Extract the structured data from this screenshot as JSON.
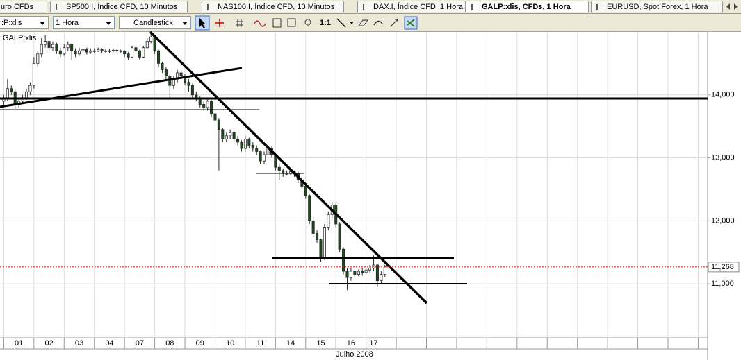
{
  "tabs": [
    "uro CFDs",
    "SP500.I, Índice CFD, 10 Minutos",
    "NAS100.I, Índice CFD, 10 Minutos",
    "DAX.I, Índice CFD, 1 Hora",
    "GALP:xlis, CFDs, 1 Hora",
    "EURUSD, Spot Forex, 1 Hora"
  ],
  "toolbar": {
    "symbol": ":P:xlis",
    "interval": "1 Hora",
    "chart_style": "Candlestick",
    "zoom_label": "1:1"
  },
  "chart_data": {
    "type": "candlestick",
    "symbol_label": "GALP:xlis",
    "x_axis_title": "Julho 2008",
    "x": [
      0,
      1,
      2,
      3,
      4,
      5,
      6,
      7,
      8,
      9,
      10,
      11,
      12,
      13,
      14,
      15,
      16,
      17,
      18,
      19,
      20,
      21,
      22,
      23,
      24,
      25,
      26,
      27,
      28,
      29,
      30,
      31,
      32,
      33,
      34,
      35,
      36,
      37,
      38,
      39,
      40,
      41,
      42,
      43,
      44,
      45,
      46,
      47,
      48,
      49,
      50,
      51,
      52,
      53,
      54,
      55,
      56,
      57,
      58,
      59,
      60,
      61,
      62,
      63,
      64,
      65,
      66,
      67,
      68,
      69,
      70,
      71,
      72,
      73,
      74,
      75,
      76,
      77,
      78,
      79,
      80,
      81,
      82,
      83,
      84,
      85,
      86,
      87,
      88,
      89,
      90,
      91,
      92,
      93,
      94,
      95,
      96,
      97,
      98,
      99,
      100,
      101
    ],
    "open": [
      13900,
      13950,
      14100,
      14050,
      13850,
      13900,
      13950,
      14050,
      14150,
      14500,
      14650,
      14800,
      14850,
      14750,
      14800,
      14700,
      14650,
      14750,
      14800,
      14700,
      14650,
      14700,
      14720,
      14680,
      14700,
      14700,
      14720,
      14700,
      14690,
      14700,
      14710,
      14700,
      14690,
      14650,
      14600,
      14750,
      14700,
      14600,
      14750,
      14850,
      14920,
      14700,
      14500,
      14400,
      14300,
      14150,
      14250,
      14350,
      14300,
      14200,
      14150,
      14000,
      13950,
      13850,
      13800,
      13900,
      13700,
      13600,
      13450,
      13300,
      13350,
      13400,
      13300,
      13250,
      13150,
      13300,
      13200,
      13150,
      13100,
      12950,
      13050,
      13150,
      13050,
      12850,
      12800,
      12750,
      12750,
      12780,
      12750,
      12650,
      12550,
      12400,
      12000,
      11800,
      11700,
      11400,
      11900,
      12100,
      12250,
      11950,
      11550,
      11200,
      11100,
      11200,
      11150,
      11200,
      11180,
      11220,
      11250,
      11300,
      11050,
      11150
    ],
    "high": [
      14000,
      14250,
      14150,
      14080,
      13950,
      14000,
      14100,
      14200,
      14600,
      14700,
      14900,
      14950,
      14880,
      14850,
      14830,
      14750,
      14800,
      14850,
      14820,
      14740,
      14750,
      14760,
      14750,
      14740,
      14740,
      14750,
      14740,
      14730,
      14730,
      14740,
      14740,
      14720,
      14710,
      14680,
      14780,
      14790,
      14720,
      14780,
      14900,
      15000,
      14950,
      14720,
      14530,
      14450,
      14320,
      14300,
      14400,
      14380,
      14330,
      14250,
      14180,
      14050,
      13980,
      13900,
      13950,
      13920,
      13750,
      13630,
      13480,
      13400,
      13450,
      13420,
      13350,
      13280,
      13350,
      13320,
      13250,
      13200,
      13120,
      13100,
      13200,
      13180,
      13080,
      12900,
      12830,
      12800,
      12820,
      12800,
      12780,
      12700,
      12600,
      12420,
      12050,
      11850,
      11720,
      11950,
      12150,
      12300,
      12280,
      11980,
      11580,
      11250,
      11250,
      11220,
      11230,
      11250,
      11250,
      11300,
      11450,
      11320,
      11200,
      11300
    ],
    "low": [
      13800,
      13900,
      14000,
      13780,
      13800,
      13860,
      13920,
      14000,
      14100,
      14450,
      14600,
      14750,
      14700,
      14700,
      14650,
      14600,
      14620,
      14700,
      14550,
      14600,
      14620,
      14670,
      14640,
      14650,
      14660,
      14680,
      14670,
      14660,
      14660,
      14680,
      14670,
      14660,
      14600,
      14550,
      14580,
      14650,
      14560,
      14580,
      14720,
      14820,
      14650,
      14450,
      14350,
      14250,
      13950,
      14100,
      14200,
      14250,
      14150,
      14050,
      13950,
      13900,
      13800,
      13750,
      13750,
      13650,
      13300,
      12800,
      13250,
      13250,
      13300,
      13250,
      13200,
      13100,
      13100,
      13150,
      13100,
      13050,
      12900,
      12900,
      13000,
      13000,
      12800,
      12650,
      12700,
      12720,
      12720,
      12700,
      12600,
      12500,
      12350,
      11950,
      11750,
      11650,
      11350,
      11380,
      11850,
      12050,
      11900,
      11500,
      11150,
      10900,
      11050,
      11100,
      11120,
      11130,
      11150,
      11180,
      11200,
      10950,
      11000,
      11100
    ],
    "close": [
      13950,
      14100,
      14050,
      13850,
      13900,
      13950,
      14050,
      14150,
      14500,
      14650,
      14800,
      14850,
      14750,
      14800,
      14700,
      14650,
      14750,
      14800,
      14700,
      14650,
      14700,
      14720,
      14680,
      14700,
      14700,
      14720,
      14700,
      14690,
      14700,
      14710,
      14700,
      14690,
      14650,
      14600,
      14750,
      14700,
      14600,
      14750,
      14850,
      14920,
      14700,
      14500,
      14400,
      14300,
      14150,
      14250,
      14350,
      14300,
      14200,
      14150,
      14000,
      13950,
      13850,
      13800,
      13900,
      13700,
      13600,
      13450,
      13300,
      13350,
      13400,
      13300,
      13250,
      13150,
      13300,
      13200,
      13150,
      13100,
      12950,
      13050,
      13150,
      13050,
      12850,
      12800,
      12750,
      12750,
      12780,
      12750,
      12650,
      12550,
      12400,
      12000,
      11800,
      11700,
      11400,
      11900,
      12100,
      12250,
      11950,
      11550,
      11200,
      11100,
      11200,
      11150,
      11200,
      11180,
      11220,
      11250,
      11300,
      11050,
      11150,
      11268
    ],
    "up_color": "#ffffff",
    "down_color": "#1e4a1e",
    "wick_color": "#2a2a2a",
    "xlim": [
      -1,
      186.5
    ],
    "xticks": [
      {
        "value": 4,
        "label": "01"
      },
      {
        "value": 12,
        "label": "02"
      },
      {
        "value": 20,
        "label": "03"
      },
      {
        "value": 28,
        "label": "04"
      },
      {
        "value": 36,
        "label": "07"
      },
      {
        "value": 44,
        "label": "08"
      },
      {
        "value": 52,
        "label": "09"
      },
      {
        "value": 60,
        "label": "10"
      },
      {
        "value": 68,
        "label": "11"
      },
      {
        "value": 76,
        "label": "14"
      },
      {
        "value": 84,
        "label": "15"
      },
      {
        "value": 92,
        "label": "16"
      },
      {
        "value": 98,
        "label": "17"
      }
    ],
    "xgrid": [
      0,
      8,
      16,
      24,
      32,
      40,
      48,
      56,
      64,
      72,
      80,
      88,
      96,
      104,
      112,
      120,
      128,
      136,
      144,
      152,
      160,
      168,
      176,
      184
    ],
    "ylim": [
      10143,
      15000
    ],
    "yticks": [
      {
        "value": 14000,
        "label": "14,000"
      },
      {
        "value": 13000,
        "label": "13,000"
      },
      {
        "value": 12000,
        "label": "12,000"
      },
      {
        "value": 11000,
        "label": "11,000"
      }
    ],
    "last_price": {
      "value": 11268,
      "label": "11,268"
    },
    "grid": true
  }
}
